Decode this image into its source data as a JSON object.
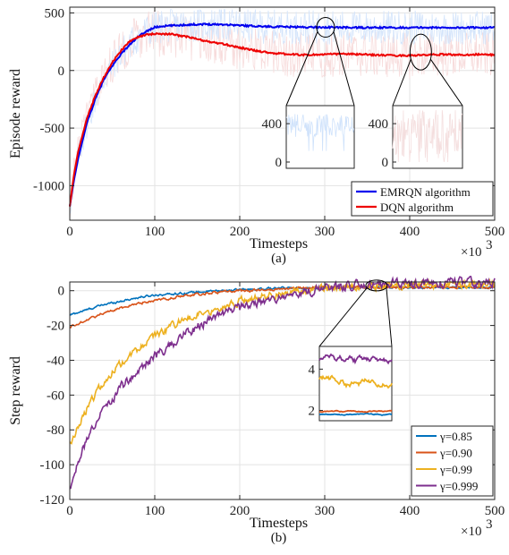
{
  "chart_data": [
    {
      "type": "line",
      "xlabel": "Timesteps",
      "ylabel": "Episode reward",
      "x_multiplier": "×10",
      "x_multiplier_exp": "3",
      "caption": "(a)",
      "xlim": [
        0,
        500
      ],
      "ylim": [
        -1300,
        550
      ],
      "x_ticks": [
        "0",
        "100",
        "200",
        "300",
        "400",
        "500"
      ],
      "y_ticks": [
        "-1000",
        "-500",
        "0",
        "500"
      ],
      "grid": true,
      "legend_position": "lower-right",
      "series": [
        {
          "name": "EMRQN algorithm",
          "color": "#0000ee",
          "x": [
            0,
            5,
            10,
            20,
            30,
            40,
            50,
            60,
            70,
            80,
            90,
            100,
            110,
            120,
            140,
            160,
            180,
            200,
            220,
            240,
            260,
            280,
            300,
            320,
            340,
            360,
            380,
            400,
            420,
            440,
            460,
            480,
            500
          ],
          "y": [
            -1180,
            -950,
            -760,
            -460,
            -250,
            -80,
            40,
            140,
            220,
            290,
            340,
            375,
            385,
            390,
            398,
            402,
            400,
            392,
            385,
            380,
            378,
            376,
            375,
            374,
            372,
            372,
            373,
            372,
            373,
            372,
            372,
            373,
            373
          ]
        },
        {
          "name": "DQN algorithm",
          "color": "#ee0000",
          "x": [
            0,
            5,
            10,
            20,
            30,
            40,
            50,
            60,
            70,
            80,
            90,
            100,
            110,
            120,
            140,
            160,
            180,
            200,
            220,
            240,
            260,
            280,
            300,
            320,
            340,
            360,
            380,
            400,
            420,
            440,
            460,
            480,
            500
          ],
          "y": [
            -1180,
            -900,
            -700,
            -420,
            -220,
            -60,
            70,
            170,
            250,
            290,
            310,
            320,
            318,
            315,
            290,
            255,
            230,
            200,
            170,
            150,
            140,
            135,
            140,
            145,
            140,
            135,
            130,
            130,
            135,
            140,
            135,
            140,
            135
          ]
        }
      ],
      "inset_left": {
        "y_ticks": [
          "0",
          "400"
        ],
        "color": "#cfe2fb"
      },
      "inset_right": {
        "y_ticks": [
          "0",
          "400"
        ],
        "color": "#f4dede"
      }
    },
    {
      "type": "line",
      "xlabel": "Timesteps",
      "ylabel": "Step reward",
      "x_multiplier": "×10",
      "x_multiplier_exp": "3",
      "caption": "(b)",
      "xlim": [
        0,
        500
      ],
      "ylim": [
        -120,
        5
      ],
      "x_ticks": [
        "0",
        "100",
        "200",
        "300",
        "400",
        "500"
      ],
      "y_ticks": [
        "-120",
        "-100",
        "-80",
        "-60",
        "-40",
        "-20",
        "0"
      ],
      "grid": true,
      "legend_position": "lower-right",
      "series": [
        {
          "name": "γ=0.85",
          "color": "#0072bd",
          "x": [
            0,
            20,
            40,
            60,
            80,
            100,
            130,
            160,
            200,
            250,
            300,
            350,
            400,
            450,
            500
          ],
          "y": [
            -14,
            -11,
            -8,
            -6,
            -4,
            -2.5,
            -1.5,
            -0.5,
            0.5,
            1.5,
            1.7,
            1.8,
            1.8,
            1.8,
            1.8
          ]
        },
        {
          "name": "γ=0.90",
          "color": "#d95319",
          "x": [
            0,
            20,
            40,
            60,
            80,
            100,
            130,
            160,
            200,
            250,
            300,
            350,
            400,
            450,
            500
          ],
          "y": [
            -21,
            -17,
            -13,
            -10,
            -7.5,
            -5.5,
            -3.5,
            -1.5,
            0,
            1,
            1.8,
            2,
            2,
            2,
            2
          ]
        },
        {
          "name": "γ=0.99",
          "color": "#edb120",
          "x": [
            0,
            10,
            20,
            40,
            60,
            80,
            100,
            130,
            160,
            200,
            250,
            300,
            350,
            400,
            450,
            500
          ],
          "y": [
            -88,
            -78,
            -68,
            -52,
            -42,
            -34,
            -26,
            -18,
            -12,
            -6,
            -1.5,
            1,
            2.5,
            3.2,
            3.5,
            3.5
          ]
        },
        {
          "name": "γ=0.999",
          "color": "#7e2f8e",
          "x": [
            0,
            10,
            20,
            40,
            60,
            80,
            100,
            130,
            160,
            200,
            250,
            300,
            350,
            400,
            450,
            500
          ],
          "y": [
            -113,
            -98,
            -85,
            -68,
            -56,
            -46,
            -38,
            -27,
            -18,
            -10,
            -3,
            1.5,
            3.5,
            4.3,
            4.5,
            4.5
          ]
        }
      ],
      "inset": {
        "y_ticks": [
          "2",
          "4"
        ]
      }
    }
  ]
}
